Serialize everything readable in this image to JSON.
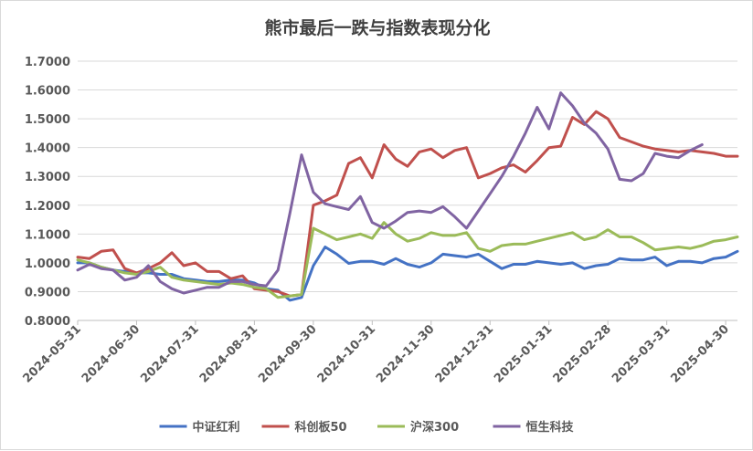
{
  "chart_data": {
    "type": "line",
    "title": "熊市最后一跌与指数表现分化",
    "xlabel": "",
    "ylabel": "",
    "ylim": [
      0.8,
      1.7
    ],
    "y_ticks": [
      "0.8000",
      "0.9000",
      "1.0000",
      "1.1000",
      "1.2000",
      "1.3000",
      "1.4000",
      "1.5000",
      "1.6000",
      "1.7000"
    ],
    "x_ticks": [
      "2024-05-31",
      "2024-06-30",
      "2024-07-31",
      "2024-08-31",
      "2024-09-30",
      "2024-10-31",
      "2024-11-30",
      "2024-12-31",
      "2025-01-31",
      "2025-02-28",
      "2025-03-31",
      "2025-04-30"
    ],
    "x_tick_index": [
      0,
      5,
      10,
      15,
      20,
      25,
      30,
      35,
      40,
      45,
      50,
      55
    ],
    "grid": true,
    "legend_position": "bottom",
    "series": [
      {
        "name": "中证红利",
        "color": "#4472C4",
        "values": [
          1.0,
          1.0,
          0.985,
          0.975,
          0.97,
          0.965,
          0.965,
          0.96,
          0.96,
          0.945,
          0.94,
          0.935,
          0.935,
          0.94,
          0.94,
          0.93,
          0.91,
          0.905,
          0.87,
          0.88,
          0.99,
          1.055,
          1.03,
          0.998,
          1.005,
          1.005,
          0.995,
          1.015,
          0.995,
          0.985,
          1.0,
          1.03,
          1.025,
          1.02,
          1.03,
          1.005,
          0.98,
          0.995,
          0.995,
          1.005,
          1.0,
          0.995,
          1.0,
          0.98,
          0.99,
          0.995,
          1.015,
          1.01,
          1.01,
          1.02,
          0.99,
          1.005,
          1.005,
          1.0,
          1.015,
          1.02,
          1.04
        ]
      },
      {
        "name": "科创板50",
        "color": "#C0504D",
        "values": [
          1.02,
          1.015,
          1.04,
          1.045,
          0.98,
          0.965,
          0.98,
          1.0,
          1.035,
          0.99,
          1.0,
          0.97,
          0.97,
          0.945,
          0.955,
          0.91,
          0.905,
          0.9,
          0.885,
          0.89,
          1.2,
          1.215,
          1.235,
          1.345,
          1.365,
          1.295,
          1.41,
          1.36,
          1.335,
          1.385,
          1.395,
          1.365,
          1.39,
          1.4,
          1.295,
          1.31,
          1.33,
          1.34,
          1.315,
          1.355,
          1.4,
          1.405,
          1.505,
          1.48,
          1.525,
          1.5,
          1.435,
          1.42,
          1.405,
          1.395,
          1.39,
          1.385,
          1.39,
          1.385,
          1.38,
          1.37,
          1.37
        ]
      },
      {
        "name": "沪深300",
        "color": "#9BBB59",
        "values": [
          1.01,
          1.0,
          0.985,
          0.975,
          0.965,
          0.96,
          0.97,
          0.985,
          0.95,
          0.94,
          0.935,
          0.93,
          0.925,
          0.93,
          0.925,
          0.915,
          0.91,
          0.88,
          0.885,
          0.89,
          1.12,
          1.1,
          1.08,
          1.09,
          1.1,
          1.085,
          1.14,
          1.1,
          1.075,
          1.085,
          1.105,
          1.095,
          1.095,
          1.105,
          1.05,
          1.04,
          1.06,
          1.065,
          1.065,
          1.075,
          1.085,
          1.095,
          1.105,
          1.08,
          1.09,
          1.115,
          1.09,
          1.09,
          1.07,
          1.045,
          1.05,
          1.055,
          1.05,
          1.06,
          1.075,
          1.08,
          1.09
        ]
      },
      {
        "name": "恒生科技",
        "color": "#8064A2",
        "values": [
          0.975,
          0.995,
          0.98,
          0.975,
          0.94,
          0.95,
          0.99,
          0.935,
          0.91,
          0.895,
          0.905,
          0.915,
          0.915,
          0.935,
          0.935,
          0.925,
          0.92,
          0.975,
          1.17,
          1.375,
          1.245,
          1.205,
          1.195,
          1.185,
          1.23,
          1.14,
          1.12,
          1.145,
          1.175,
          1.18,
          1.175,
          1.195,
          1.16,
          1.12,
          1.18,
          1.24,
          1.3,
          1.37,
          1.45,
          1.54,
          1.465,
          1.59,
          1.545,
          1.485,
          1.45,
          1.395,
          1.29,
          1.285,
          1.31,
          1.38,
          1.37,
          1.365,
          1.39,
          1.41
        ]
      }
    ]
  }
}
